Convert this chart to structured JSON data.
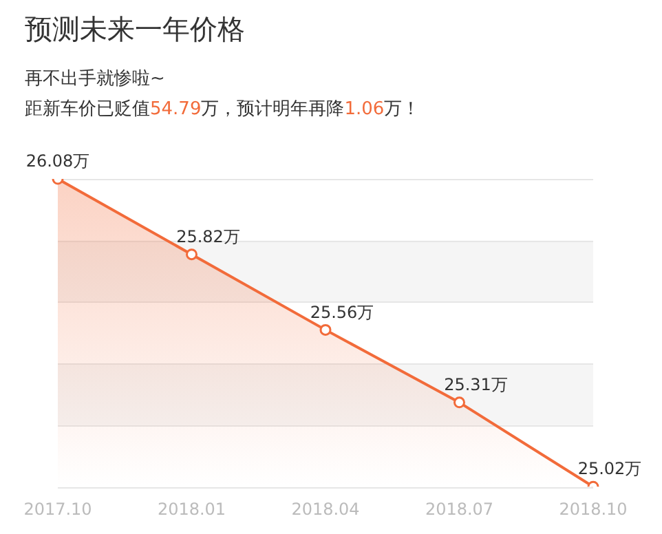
{
  "chart_data": {
    "type": "area",
    "title": "预测未来一年价格",
    "subtitle": "再不出手就惨啦~",
    "annotations": [
      "距新车价已贬值54.79万，预计明年再降1.06万！"
    ],
    "categories": [
      "2017.10",
      "2018.01",
      "2018.04",
      "2018.07",
      "2018.10"
    ],
    "series": [
      {
        "color": "#f26b3a",
        "values": [
          26.08,
          25.82,
          25.56,
          25.31,
          25.02
        ],
        "value_labels": [
          "26.08万",
          "25.82万",
          "25.56万",
          "25.31万",
          "25.02万"
        ]
      }
    ],
    "ylim": [
      25.02,
      26.08
    ],
    "yticks": [
      {
        "value": 25.02,
        "label": null
      },
      {
        "value": 25.232,
        "label": null
      },
      {
        "value": 25.444,
        "label": null
      },
      {
        "value": 25.656,
        "label": null
      },
      {
        "value": 25.868,
        "label": null
      },
      {
        "value": 26.08,
        "label": null
      }
    ],
    "grid": "y",
    "tick_labels": "x",
    "marker": "circle",
    "legend": false
  }
}
